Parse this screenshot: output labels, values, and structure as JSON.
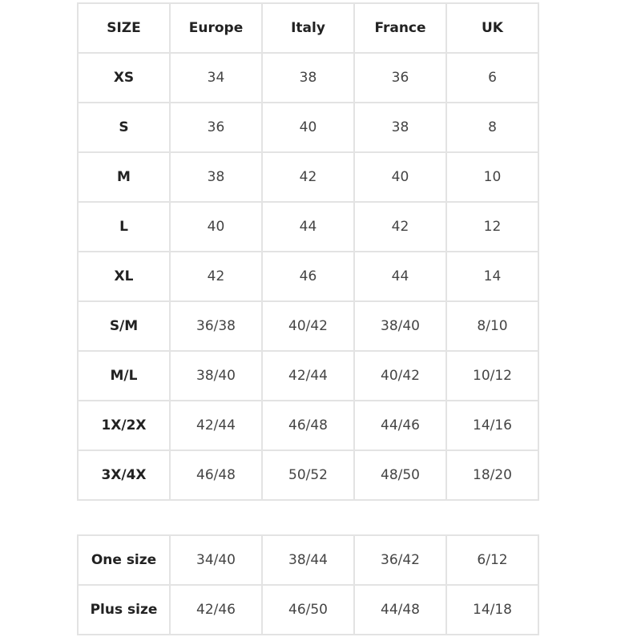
{
  "size_table": {
    "header": [
      "SIZE",
      "Europe",
      "Italy",
      "France",
      "UK"
    ],
    "rows": [
      [
        "XS",
        "34",
        "38",
        "36",
        "6"
      ],
      [
        "S",
        "36",
        "40",
        "38",
        "8"
      ],
      [
        "M",
        "38",
        "42",
        "40",
        "10"
      ],
      [
        "L",
        "40",
        "44",
        "42",
        "12"
      ],
      [
        "XL",
        "42",
        "46",
        "44",
        "14"
      ],
      [
        "S/M",
        "36/38",
        "40/42",
        "38/40",
        "8/10"
      ],
      [
        "M/L",
        "38/40",
        "42/44",
        "40/42",
        "10/12"
      ],
      [
        "1X/2X",
        "42/44",
        "46/48",
        "44/46",
        "14/16"
      ],
      [
        "3X/4X",
        "46/48",
        "50/52",
        "48/50",
        "18/20"
      ]
    ]
  },
  "special_sizes_table": {
    "rows": [
      [
        "One size",
        "34/40",
        "38/44",
        "36/42",
        "6/12"
      ],
      [
        "Plus size",
        "42/46",
        "46/50",
        "44/48",
        "14/18"
      ]
    ]
  }
}
